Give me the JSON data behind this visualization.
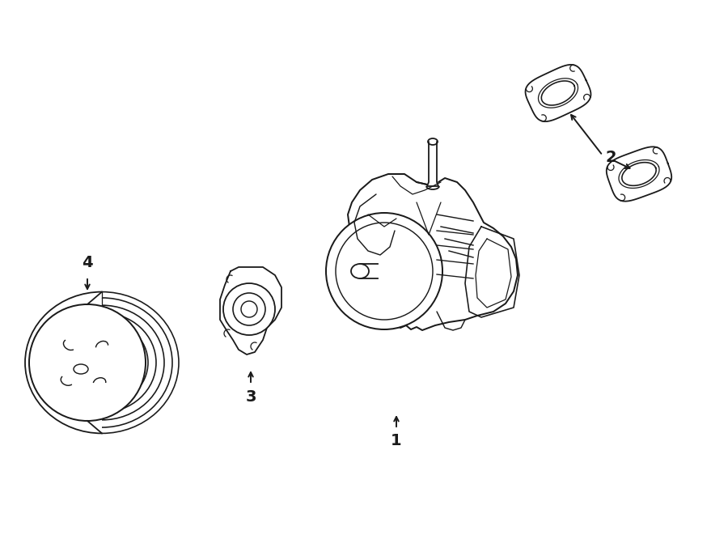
{
  "background_color": "#ffffff",
  "line_color": "#1a1a1a",
  "line_width": 1.3,
  "figsize": [
    9.0,
    6.61
  ],
  "dpi": 100
}
